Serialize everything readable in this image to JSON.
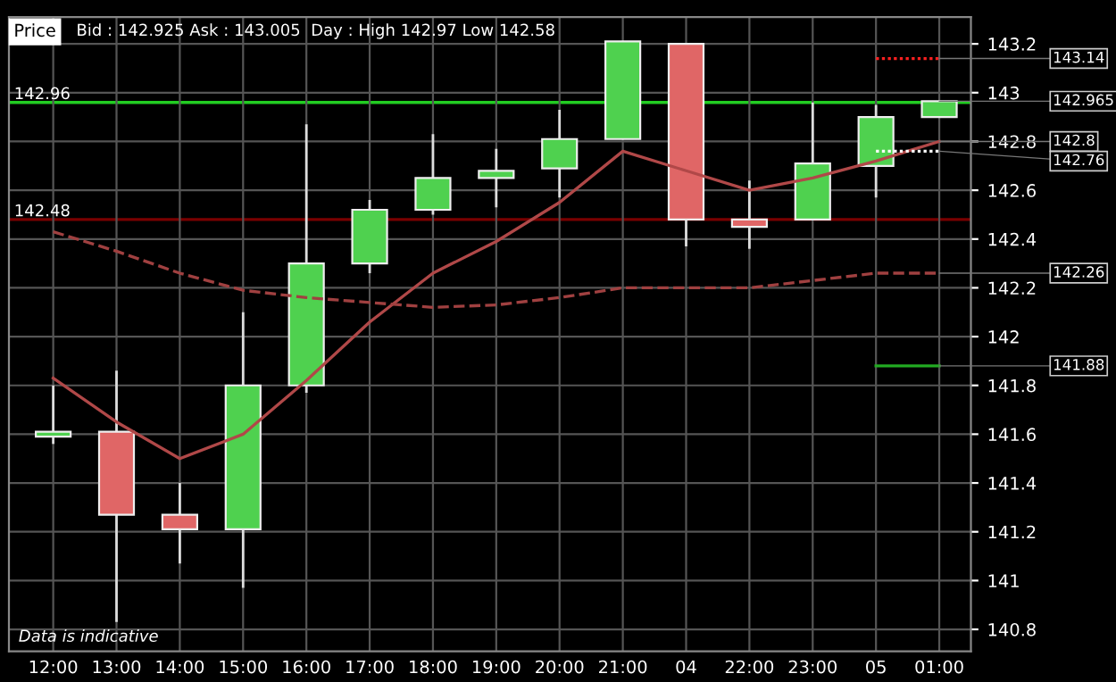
{
  "chart_data": {
    "type": "candlestick",
    "title": "Price",
    "subtitle": "Bid : 142.925 Ask : 143.005  Day : High 142.97 Low 142.58",
    "categories": [
      "12:00",
      "13:00",
      "14:00",
      "15:00",
      "16:00",
      "17:00",
      "18:00",
      "19:00",
      "20:00",
      "21:00",
      "04",
      "22:00",
      "23:00",
      "05",
      "01:00"
    ],
    "ohlc": [
      [
        141.59,
        141.8,
        141.56,
        141.61
      ],
      [
        141.61,
        141.86,
        140.83,
        141.27
      ],
      [
        141.27,
        141.4,
        141.07,
        141.21
      ],
      [
        141.21,
        142.1,
        140.97,
        141.8
      ],
      [
        141.8,
        142.87,
        141.77,
        142.3
      ],
      [
        142.3,
        142.56,
        142.26,
        142.52
      ],
      [
        142.52,
        142.83,
        142.5,
        142.65
      ],
      [
        142.65,
        142.77,
        142.53,
        142.68
      ],
      [
        142.69,
        142.93,
        142.57,
        142.81
      ],
      [
        142.81,
        143.21,
        142.81,
        143.21
      ],
      [
        143.2,
        143.2,
        142.37,
        142.48
      ],
      [
        142.48,
        142.64,
        142.36,
        142.45
      ],
      [
        142.48,
        142.96,
        142.48,
        142.71
      ],
      [
        142.7,
        142.95,
        142.57,
        142.9
      ],
      [
        142.9,
        142.965,
        142.9,
        142.965
      ]
    ],
    "colors": [
      "#4fd14f",
      "#e06666",
      "#e06666",
      "#4fd14f",
      "#4fd14f",
      "#4fd14f",
      "#4fd14f",
      "#4fd14f",
      "#4fd14f",
      "#4fd14f",
      "#e06666",
      "#e06666",
      "#4fd14f",
      "#4fd14f",
      "#4fd14f"
    ],
    "series": [
      {
        "type": "line",
        "color": "#b04848",
        "line_style": "solid",
        "values": [
          141.83,
          141.65,
          141.5,
          141.6,
          141.82,
          142.06,
          142.26,
          142.39,
          142.55,
          142.76,
          142.68,
          142.6,
          142.65,
          142.72,
          142.8
        ]
      },
      {
        "type": "line",
        "color": "#a04040",
        "line_style": "dashed",
        "values": [
          142.43,
          142.35,
          142.26,
          142.19,
          142.16,
          142.14,
          142.12,
          142.13,
          142.16,
          142.2,
          142.2,
          142.2,
          142.23,
          142.26,
          142.26
        ]
      },
      {
        "type": "line",
        "color": "#ff2020",
        "line_style": "dotted",
        "values": [
          null,
          null,
          null,
          null,
          null,
          null,
          null,
          null,
          null,
          null,
          null,
          null,
          null,
          143.14,
          143.14
        ]
      },
      {
        "type": "line",
        "color": "#ffffff",
        "line_style": "dotted",
        "values": [
          null,
          null,
          null,
          null,
          null,
          null,
          null,
          null,
          null,
          null,
          null,
          null,
          null,
          142.76,
          142.76
        ]
      },
      {
        "type": "line",
        "color": "#22aa22",
        "line_style": "solid",
        "values": [
          null,
          null,
          null,
          null,
          null,
          null,
          null,
          null,
          null,
          null,
          null,
          null,
          null,
          141.88,
          141.88
        ]
      }
    ],
    "ylim": [
      140.71,
      143.31
    ],
    "yticks": [
      140.8,
      {
        "value": 141,
        "label": "141"
      },
      141.2,
      141.4,
      141.6,
      141.8,
      {
        "value": 142,
        "label": "142"
      },
      142.2,
      142.4,
      142.6,
      142.8,
      {
        "value": 143,
        "label": "143"
      },
      143.2
    ],
    "ref_lines": [
      {
        "axis": "y",
        "value": 142.96,
        "label": "142.96",
        "color": "#22cc22",
        "line_style": "solid"
      },
      {
        "axis": "y",
        "value": 142.48,
        "label": "142.48",
        "color": "#7a0000",
        "line_style": "solid"
      }
    ],
    "annotations": [
      {
        "text": "143.14",
        "x": "01:00",
        "y": 143.14
      },
      {
        "text": "142.965",
        "x": "01:00",
        "y": 142.965
      },
      {
        "text": "142.8",
        "x": "01:00",
        "y": 142.8
      },
      {
        "text": "142.76",
        "x": "01:00",
        "y": 142.76
      },
      {
        "text": "142.26",
        "x": "01:00",
        "y": 142.26
      },
      {
        "text": "141.88",
        "x": "01:00",
        "y": 141.88
      },
      "Data is indicative"
    ],
    "grid": true,
    "legend": false
  }
}
